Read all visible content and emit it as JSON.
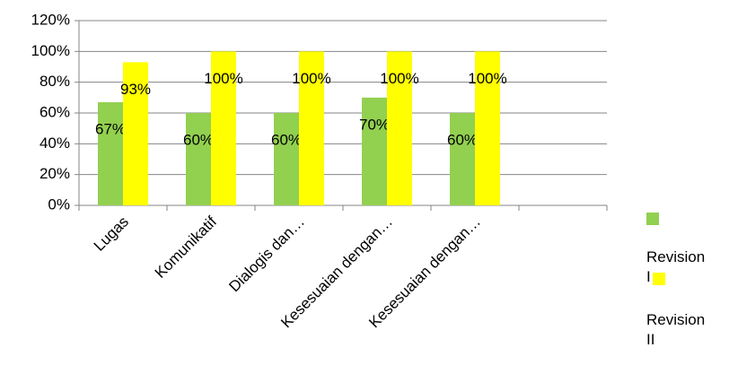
{
  "chart_data": {
    "type": "bar",
    "categories": [
      "Lugas",
      "Komunikatif",
      "Dialogis dan…",
      "Kesesuaian dengan…",
      "Kesesuaian dengan…",
      null
    ],
    "series": [
      {
        "name": "Revision I",
        "color": "#92d050",
        "values": [
          67,
          60,
          60,
          70,
          60,
          null
        ],
        "value_labels": [
          "67%",
          "60%",
          "60%",
          "70%",
          "60%",
          null
        ]
      },
      {
        "name": "Revision II",
        "color": "#ffff00",
        "values": [
          93,
          100,
          100,
          100,
          100,
          null
        ],
        "value_labels": [
          "93%",
          "100%",
          "100%",
          "100%",
          "100%",
          null
        ]
      }
    ],
    "ylim": [
      0,
      120
    ],
    "yticks": [
      {
        "value": 0,
        "label": "0%"
      },
      {
        "value": 20,
        "label": "20%"
      },
      {
        "value": 40,
        "label": "40%"
      },
      {
        "value": 60,
        "label": "60%"
      },
      {
        "value": 80,
        "label": "80%"
      },
      {
        "value": 100,
        "label": "100%"
      },
      {
        "value": 120,
        "label": "120%"
      }
    ],
    "grid": true,
    "legend": "right"
  }
}
